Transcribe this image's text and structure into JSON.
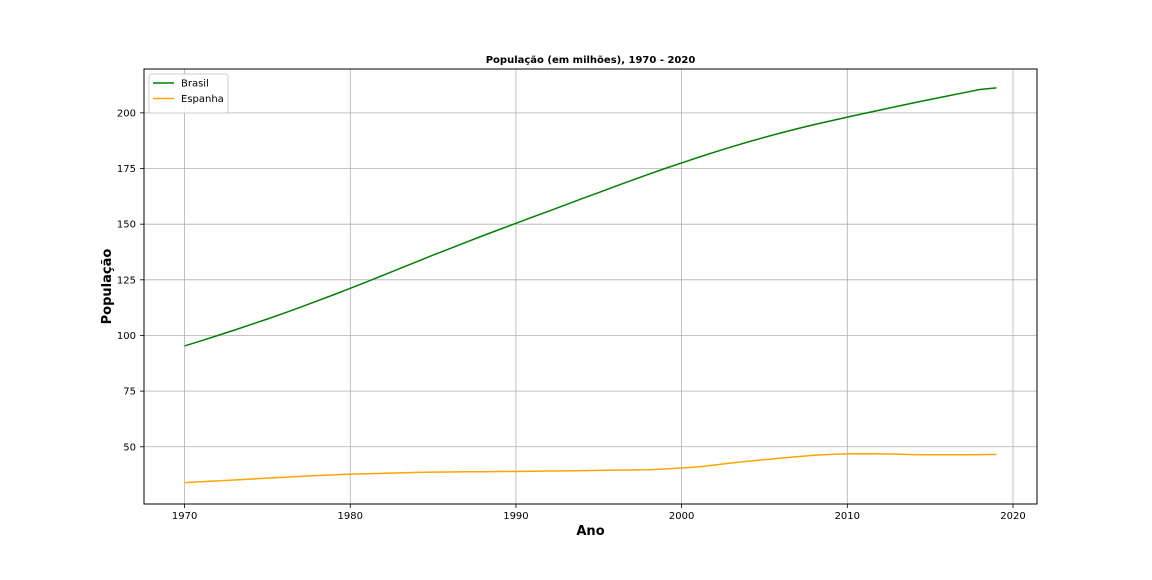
{
  "chart_data": {
    "type": "line",
    "title": "População (em milhões), 1970 - 2020",
    "xlabel": "Ano",
    "ylabel": "População",
    "xlim": [
      1967.55,
      2021.45
    ],
    "ylim": [
      24.3,
      219.7
    ],
    "xticks": [
      1970,
      1980,
      1990,
      2000,
      2010,
      2020
    ],
    "yticks": [
      50,
      75,
      100,
      125,
      150,
      175,
      200
    ],
    "grid": true,
    "legend_position": "top-left",
    "series": [
      {
        "name": "Brasil",
        "color": "#008000",
        "x": [
          1970,
          1971,
          1972,
          1973,
          1974,
          1975,
          1976,
          1977,
          1978,
          1979,
          1980,
          1981,
          1982,
          1983,
          1984,
          1985,
          1986,
          1987,
          1988,
          1989,
          1990,
          1991,
          1992,
          1993,
          1994,
          1995,
          1996,
          1997,
          1998,
          1999,
          2000,
          2001,
          2002,
          2003,
          2004,
          2005,
          2006,
          2007,
          2008,
          2009,
          2010,
          2011,
          2012,
          2013,
          2014,
          2015,
          2016,
          2017,
          2018,
          2019
        ],
        "values": [
          95.3,
          97.6,
          100.0,
          102.4,
          104.9,
          107.4,
          110.0,
          112.7,
          115.5,
          118.3,
          121.2,
          124.1,
          127.1,
          130.1,
          133.1,
          136.1,
          139.0,
          141.9,
          144.8,
          147.6,
          150.4,
          153.2,
          155.9,
          158.7,
          161.5,
          164.2,
          167.0,
          169.7,
          172.4,
          175.0,
          177.5,
          180.0,
          182.4,
          184.7,
          186.9,
          189.0,
          191.0,
          192.9,
          194.7,
          196.4,
          198.1,
          199.7,
          201.3,
          202.9,
          204.5,
          206.0,
          207.5,
          209.0,
          210.5,
          211.2
        ]
      },
      {
        "name": "Espanha",
        "color": "#FFA500",
        "x": [
          1970,
          1971,
          1972,
          1973,
          1974,
          1975,
          1976,
          1977,
          1978,
          1979,
          1980,
          1981,
          1982,
          1983,
          1984,
          1985,
          1986,
          1987,
          1988,
          1989,
          1990,
          1991,
          1992,
          1993,
          1994,
          1995,
          1996,
          1997,
          1998,
          1999,
          2000,
          2001,
          2002,
          2003,
          2004,
          2005,
          2006,
          2007,
          2008,
          2009,
          2010,
          2011,
          2012,
          2013,
          2014,
          2015,
          2016,
          2017,
          2018,
          2019
        ],
        "values": [
          33.9,
          34.3,
          34.7,
          35.1,
          35.5,
          35.9,
          36.3,
          36.7,
          37.1,
          37.4,
          37.7,
          37.9,
          38.1,
          38.3,
          38.5,
          38.6,
          38.7,
          38.8,
          38.8,
          38.9,
          38.9,
          39.0,
          39.1,
          39.2,
          39.3,
          39.4,
          39.5,
          39.6,
          39.7,
          40.0,
          40.5,
          41.0,
          41.8,
          42.7,
          43.5,
          44.2,
          44.9,
          45.6,
          46.2,
          46.6,
          46.8,
          46.9,
          46.8,
          46.7,
          46.5,
          46.4,
          46.4,
          46.4,
          46.5,
          46.6
        ]
      }
    ]
  }
}
